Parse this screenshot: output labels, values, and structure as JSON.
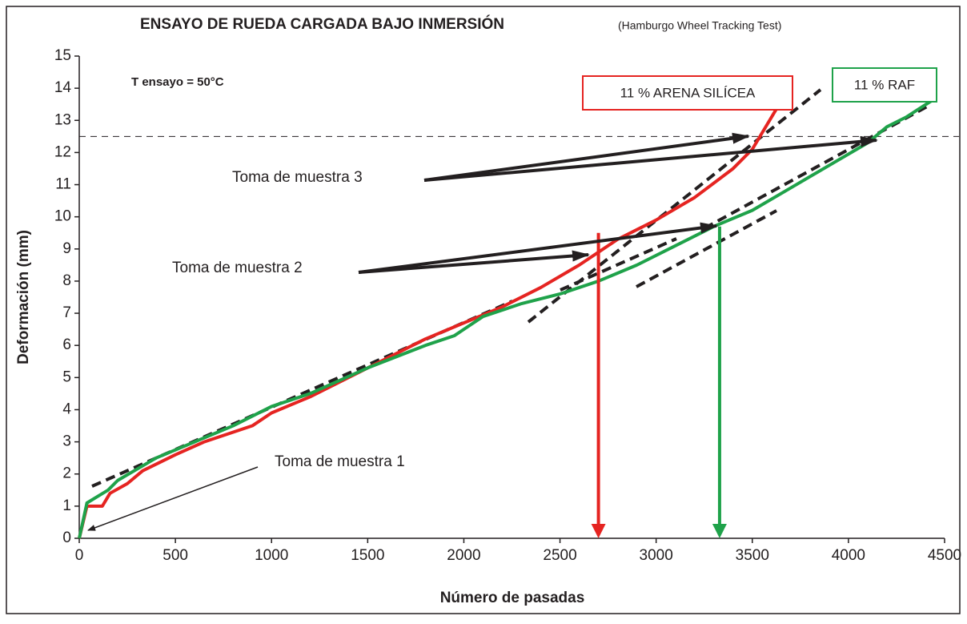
{
  "chart_data": {
    "type": "line",
    "title": "ENSAYO DE RUEDA CARGADA BAJO INMERSIÓN",
    "subtitle": "(Hamburgo Wheel Tracking Test)",
    "xlabel": "Número de pasadas",
    "ylabel": "Deformación (mm)",
    "xlim": [
      0,
      4500
    ],
    "ylim": [
      0,
      15
    ],
    "xticks": [
      0,
      500,
      1000,
      1500,
      2000,
      2500,
      3000,
      3500,
      4000,
      4500
    ],
    "yticks": [
      0,
      1,
      2,
      3,
      4,
      5,
      6,
      7,
      8,
      9,
      10,
      11,
      12,
      13,
      14,
      15
    ],
    "annotations": [
      "T ensayo = 50°C",
      "Toma de muestra 1",
      "Toma de muestra 2",
      "Toma de muestra 3"
    ],
    "reference_y": 12.5,
    "series": [
      {
        "name": "11 % ARENA SILÍCEA",
        "color": "#e52421",
        "x": [
          0,
          40,
          120,
          160,
          250,
          330,
          500,
          650,
          900,
          1000,
          1200,
          1500,
          1800,
          2000,
          2200,
          2400,
          2600,
          2700,
          2800,
          2900,
          3000,
          3200,
          3400,
          3500,
          3650
        ],
        "values": [
          0,
          1.0,
          1.0,
          1.4,
          1.7,
          2.1,
          2.6,
          3.0,
          3.5,
          3.9,
          4.4,
          5.3,
          6.2,
          6.7,
          7.2,
          7.8,
          8.5,
          8.9,
          9.3,
          9.6,
          9.9,
          10.6,
          11.5,
          12.1,
          13.6
        ]
      },
      {
        "name": "11 % RAF",
        "color": "#1fa24a",
        "x": [
          0,
          40,
          150,
          200,
          400,
          600,
          800,
          1000,
          1200,
          1500,
          1800,
          1950,
          2000,
          2100,
          2300,
          2500,
          2700,
          2900,
          3100,
          3300,
          3500,
          3700,
          3900,
          4100,
          4200,
          4300,
          4430
        ],
        "values": [
          0,
          1.1,
          1.5,
          1.8,
          2.5,
          3.0,
          3.5,
          4.1,
          4.5,
          5.3,
          6.0,
          6.3,
          6.5,
          6.9,
          7.3,
          7.6,
          8.0,
          8.5,
          9.1,
          9.7,
          10.2,
          10.9,
          11.6,
          12.3,
          12.8,
          13.1,
          13.6
        ]
      }
    ],
    "markers": [
      {
        "x": 2700,
        "y": 9.5,
        "color": "#e52421"
      },
      {
        "x": 3330,
        "y": 9.7,
        "color": "#1fa24a"
      }
    ]
  }
}
